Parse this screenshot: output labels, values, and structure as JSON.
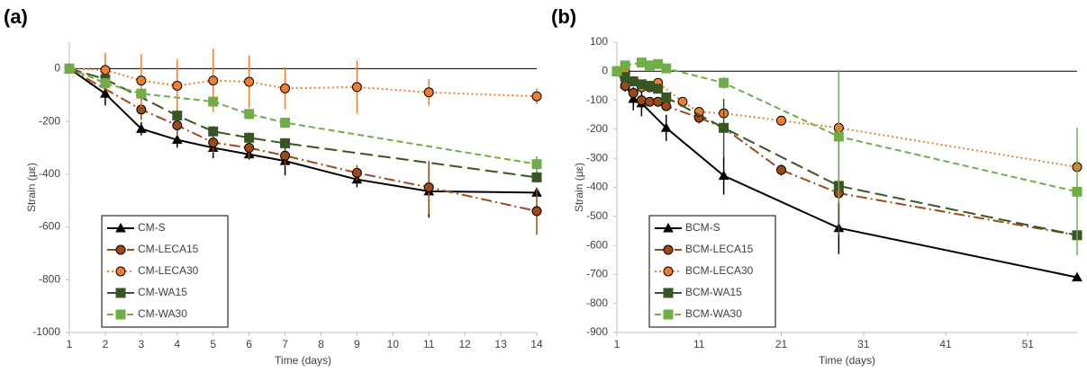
{
  "chart_data": [
    {
      "type": "line",
      "label": "(a)",
      "xlabel": "Time (days)",
      "ylabel": "Strain (με)",
      "xlim": [
        1,
        14
      ],
      "xticks": [
        1,
        2,
        3,
        4,
        5,
        6,
        7,
        8,
        9,
        10,
        11,
        12,
        13,
        14
      ],
      "ylim": [
        -1000,
        100
      ],
      "yticks": [
        -1000,
        -800,
        -600,
        -400,
        -200,
        0
      ],
      "legend": "lower left",
      "series": [
        {
          "name": "CM-S",
          "color": "#000000",
          "dash": "solid",
          "marker": "triangle",
          "x": [
            1,
            2,
            3,
            4,
            5,
            6,
            7,
            9,
            11,
            14
          ],
          "values": [
            0,
            -95,
            -228,
            -270,
            -300,
            -325,
            -350,
            -420,
            -465,
            -470
          ],
          "errors": [
            0,
            45,
            25,
            30,
            40,
            20,
            55,
            30,
            100,
            15
          ]
        },
        {
          "name": "CM-LECA15",
          "color": "#9c4a1a",
          "dash": "dashdot",
          "marker": "circle",
          "x": [
            1,
            3,
            4,
            5,
            6,
            7,
            9,
            11,
            14
          ],
          "values": [
            0,
            -155,
            -215,
            -280,
            -300,
            -330,
            -395,
            -450,
            -540
          ],
          "errors": [
            0,
            40,
            40,
            40,
            40,
            40,
            30,
            100,
            90
          ]
        },
        {
          "name": "CM-LECA30",
          "color": "#ed7d31",
          "dash": "dotted",
          "marker": "circle",
          "x": [
            1,
            2,
            3,
            4,
            5,
            6,
            7,
            9,
            11,
            14
          ],
          "values": [
            0,
            -5,
            -45,
            -65,
            -45,
            -50,
            -75,
            -70,
            -90,
            -105
          ],
          "errors": [
            0,
            65,
            100,
            100,
            120,
            100,
            80,
            100,
            50,
            30
          ]
        },
        {
          "name": "CM-WA15",
          "color": "#375623",
          "dash": "longdash",
          "marker": "square",
          "x": [
            1,
            2,
            4,
            5,
            6,
            7,
            14
          ],
          "values": [
            0,
            -40,
            -178,
            -238,
            -262,
            -283,
            -412
          ],
          "errors": [
            0,
            10,
            20,
            20,
            20,
            20,
            20
          ]
        },
        {
          "name": "CM-WA30",
          "color": "#70ad47",
          "dash": "dashed",
          "marker": "square",
          "x": [
            1,
            2,
            3,
            5,
            6,
            7,
            14
          ],
          "values": [
            0,
            -55,
            -95,
            -125,
            -172,
            -205,
            -362
          ],
          "errors": [
            0,
            10,
            20,
            20,
            20,
            20,
            30
          ]
        }
      ]
    },
    {
      "type": "line",
      "label": "(b)",
      "xlabel": "Time (days)",
      "ylabel": "Strain (με)",
      "xlim": [
        1,
        57
      ],
      "xticks": [
        1,
        11,
        21,
        31,
        41,
        51
      ],
      "ylim": [
        -900,
        100
      ],
      "yticks": [
        -900,
        -800,
        -700,
        -600,
        -500,
        -400,
        -300,
        -200,
        -100,
        0,
        100
      ],
      "legend": "lower left",
      "series": [
        {
          "name": "BCM-S",
          "color": "#000000",
          "dash": "solid",
          "marker": "triangle",
          "x": [
            1,
            2,
            3,
            4,
            7,
            14,
            28,
            57
          ],
          "values": [
            0,
            -45,
            -95,
            -110,
            -195,
            -360,
            -540,
            -710
          ],
          "errors": [
            0,
            25,
            40,
            45,
            45,
            65,
            90,
            10
          ]
        },
        {
          "name": "BCM-LECA15",
          "color": "#9c4a1a",
          "dash": "dashdot",
          "marker": "circle",
          "x": [
            1,
            2,
            3,
            4,
            5,
            6,
            7,
            11,
            14,
            21,
            28,
            57
          ],
          "values": [
            0,
            -50,
            -75,
            -100,
            -105,
            -105,
            -120,
            -160,
            -195,
            -340,
            -420,
            -565
          ],
          "errors": [
            0,
            10,
            15,
            15,
            10,
            10,
            15,
            20,
            20,
            20,
            20,
            10
          ]
        },
        {
          "name": "BCM-LECA30",
          "color": "#ed7d31",
          "dash": "dotted",
          "marker": "circle",
          "x": [
            1,
            2,
            3,
            4,
            5,
            6,
            9,
            11,
            14,
            21,
            28,
            57
          ],
          "values": [
            0,
            -5,
            -35,
            -55,
            -55,
            -40,
            -105,
            -140,
            -145,
            -170,
            -195,
            -330
          ],
          "errors": [
            0,
            10,
            10,
            10,
            10,
            10,
            10,
            10,
            15,
            15,
            30,
            0
          ]
        },
        {
          "name": "BCM-WA15",
          "color": "#375623",
          "dash": "longdash",
          "marker": "square",
          "x": [
            1,
            2,
            3,
            4,
            5,
            6,
            7,
            14,
            28,
            57
          ],
          "values": [
            0,
            -20,
            -35,
            -45,
            -50,
            -60,
            -90,
            -195,
            -395,
            -565
          ],
          "errors": [
            0,
            10,
            10,
            10,
            10,
            10,
            15,
            100,
            170,
            0
          ]
        },
        {
          "name": "BCM-WA30",
          "color": "#70ad47",
          "dash": "dashed",
          "marker": "square",
          "x": [
            1,
            2,
            4,
            5,
            6,
            7,
            14,
            28,
            57
          ],
          "values": [
            0,
            20,
            30,
            20,
            25,
            10,
            -40,
            -225,
            -415
          ],
          "errors": [
            0,
            10,
            10,
            10,
            10,
            10,
            20,
            230,
            220
          ]
        }
      ]
    }
  ]
}
